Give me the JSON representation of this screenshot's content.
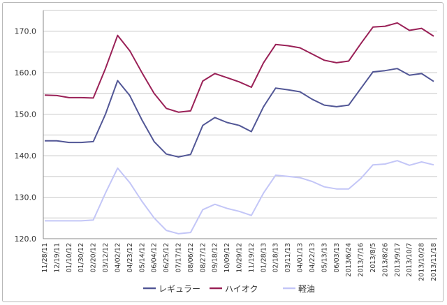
{
  "chart_data": {
    "type": "line",
    "title": "",
    "xlabel": "",
    "ylabel": "",
    "ylim": [
      120,
      175
    ],
    "yticks": [
      "120.0",
      "130.0",
      "140.0",
      "150.0",
      "160.0",
      "170.0"
    ],
    "ytick_values": [
      120,
      130,
      140,
      150,
      160,
      170
    ],
    "grid_step": 5,
    "grid": true,
    "legend_position": "bottom",
    "categories": [
      "11/28/11",
      "12/19/11",
      "01/10/12",
      "01/30/12",
      "02/20/12",
      "03/12/12",
      "04/02/12",
      "04/23/12",
      "05/14/12",
      "06/04/12",
      "06/25/12",
      "07/17/12",
      "08/06/12",
      "08/27/12",
      "09/18/12",
      "10/09/12",
      "10/29/12",
      "11/19/12",
      "01/28/13",
      "02/18/13",
      "03/11/13",
      "04/01/13",
      "04/22/13",
      "05/13/13",
      "06/03/13",
      "2013/6/24",
      "2013/7/16",
      "2013/8/5",
      "2013/8/26",
      "2013/9/17",
      "2013/10/7",
      "2013/10/28",
      "2013/11/18"
    ],
    "series": [
      {
        "name": "レギュラー",
        "color": "#525796",
        "values": [
          143.6,
          143.6,
          143.2,
          143.2,
          143.4,
          150.0,
          158.1,
          154.5,
          148.6,
          143.4,
          140.4,
          139.7,
          140.3,
          147.3,
          149.2,
          148.0,
          147.3,
          145.8,
          151.8,
          156.3,
          155.9,
          155.4,
          153.6,
          152.2,
          151.8,
          152.2,
          156.2,
          160.2,
          160.5,
          161.0,
          159.4,
          159.8,
          157.9
        ]
      },
      {
        "name": "ハイオク",
        "color": "#9A2157",
        "values": [
          154.6,
          154.5,
          154.0,
          154.0,
          153.9,
          161.0,
          169.0,
          165.3,
          160.0,
          155.0,
          151.4,
          150.5,
          150.8,
          158.0,
          159.8,
          158.8,
          157.8,
          156.5,
          162.4,
          166.8,
          166.5,
          166.0,
          164.5,
          163.0,
          162.4,
          162.8,
          167.0,
          171.0,
          171.2,
          172.0,
          170.2,
          170.7,
          168.8
        ]
      },
      {
        "name": "軽油",
        "color": "#C3C6F7",
        "values": [
          124.3,
          124.3,
          124.3,
          124.3,
          124.5,
          131.0,
          137.0,
          133.5,
          129.0,
          125.0,
          122.0,
          121.2,
          121.5,
          127.0,
          128.3,
          127.3,
          126.6,
          125.6,
          131.0,
          135.3,
          135.0,
          134.7,
          133.8,
          132.5,
          132.0,
          132.0,
          134.5,
          137.8,
          138.0,
          138.8,
          137.7,
          138.5,
          137.8
        ]
      }
    ]
  }
}
